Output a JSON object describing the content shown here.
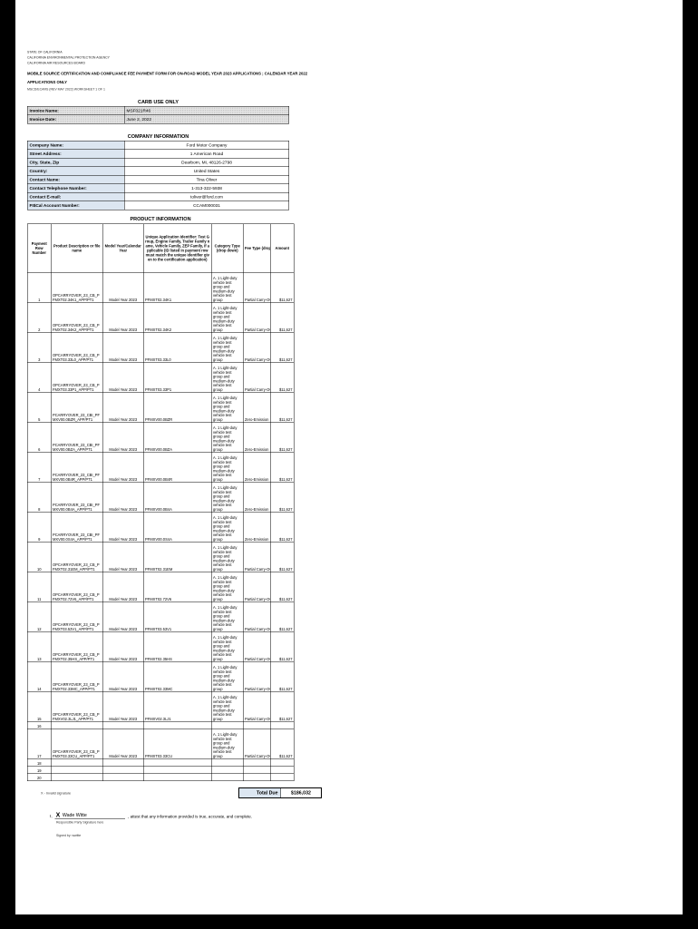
{
  "colors": {
    "page_bg": "#000000",
    "label_fill": "#dce6f1",
    "carb_fill": "#e3e3e3"
  },
  "header": {
    "gov_line1": "STATE OF CALIFORNIA",
    "gov_line2": "CALIFORNIA ENVIRONMENTAL PROTECTION AGENCY",
    "gov_line3": "CALIFORNIA AIR RESOURCES BOARD",
    "title_line1": "MOBILE SOURCE CERTIFICATION AND COMPLIANCE FEE PAYMENT FORM FOR ON-ROAD MODEL YEAR 2023 APPLICATIONS ; CALENDAR YEAR 2022",
    "title_line2": "APPLICATIONS ONLY",
    "form_ref": "MSCD/ECARS (REV MAY 2022) WORKSHEET 1 OF 1"
  },
  "carb_use_only": {
    "section_title": "CARB USE ONLY",
    "fields": [
      {
        "label": "Invoice Name:",
        "value": "MSF021R46"
      },
      {
        "label": "Invoice Date:",
        "value": "June 2, 2022"
      }
    ]
  },
  "company_information": {
    "section_title": "COMPANY INFORMATION",
    "fields": [
      {
        "label": "Company Name:",
        "value": "Ford Motor Company"
      },
      {
        "label": "Street Address:",
        "value": "1 American Road"
      },
      {
        "label": "City, State, Zip",
        "value": "Dearborn, MI, 48126-2798"
      },
      {
        "label": "Country:",
        "value": "United States"
      },
      {
        "label": "Contact Name:",
        "value": "Tina Oliver"
      },
      {
        "label": "Contact Telephone Number:",
        "value": "1-313-322-5938"
      },
      {
        "label": "Contact E-mail:",
        "value": "toliver@ford.com"
      },
      {
        "label": "FI$Cal Account Number:",
        "value": "CCAM000031"
      }
    ]
  },
  "product_information": {
    "section_title": "PRODUCT INFORMATION",
    "columns": [
      "Payment Row Number",
      "Product Description or file name",
      "Model Year/Calendar Year",
      "Unique Application Identifier: Test Group, Engine Family, Trailer Family name, Vehicle Family, ZEP Family, if applicable (ID listed in payment row must match the unique identifier given to the certification application)",
      "Category Type (drop down)",
      "Fee Type (drop down)",
      "Amount"
    ],
    "rows": [
      {
        "num": "1",
        "description": "OPCARRYOVER_23_CB_PFMXT02.34K1_APP/PT1",
        "model_year": "Model Year 2023",
        "identifier": "PFMXT02.34K1",
        "category": "A. 1 Light-duty vehicle test group and medium-duty vehicle test group",
        "fee_type": "Partial Carry-Over",
        "amount": "$11,627"
      },
      {
        "num": "2",
        "description": "OPCARRYOVER_23_CB_PFMXT02.34K2_APP/PT1",
        "model_year": "Model Year 2023",
        "identifier": "PFMXT02.34K2",
        "category": "A. 1 Light-duty vehicle test group and medium-duty vehicle test group",
        "fee_type": "Partial Carry-Over",
        "amount": "$11,627"
      },
      {
        "num": "3",
        "description": "OPCARRYOVER_23_CB_PFMXT03.33L0_APP/PT1",
        "model_year": "Model Year 2023",
        "identifier": "PFMXT03.33L0",
        "category": "A. 1 Light-duty vehicle test group and medium-duty vehicle test group",
        "fee_type": "Partial Carry-Over",
        "amount": "$11,627"
      },
      {
        "num": "4",
        "description": "OPCARRYOVER_23_CB_PFMXT03.33P1_APP/PT1",
        "model_year": "Model Year 2023",
        "identifier": "PFMXT03.33P1",
        "category": "A. 1 Light-duty vehicle test group and medium-duty vehicle test group",
        "fee_type": "Partial Carry-Over",
        "amount": "$11,627"
      },
      {
        "num": "5",
        "description": "PCARRYOVER_23_CBI_PFMXV00.0BZR_APP/PT1",
        "model_year": "Model Year 2023",
        "identifier": "PFMXV00.0BZR",
        "category": "A. 1 Light-duty vehicle test group and medium-duty vehicle test group",
        "fee_type": "Zero-Emission",
        "amount": "$11,627"
      },
      {
        "num": "6",
        "description": "PCARRYOVER_23_CBI_PFMXV00.0BZA_APP/PT1",
        "model_year": "Model Year 2023",
        "identifier": "PFMXV00.0BZA",
        "category": "A. 1 Light-duty vehicle test group and medium-duty vehicle test group",
        "fee_type": "Zero-Emission",
        "amount": "$11,627"
      },
      {
        "num": "7",
        "description": "PCARRYOVER_23_CBI_PFMXV00.0B4R_APP/PT1",
        "model_year": "Model Year 2023",
        "identifier": "PFMXV00.0B4R",
        "category": "A. 1 Light-duty vehicle test group and medium-duty vehicle test group",
        "fee_type": "Zero-Emission",
        "amount": "$11,627"
      },
      {
        "num": "8",
        "description": "PCARRYOVER_23_CBI_PFMXV00.0B4A_APP/PT1",
        "model_year": "Model Year 2023",
        "identifier": "PFMXV00.0B4A",
        "category": "A. 1 Light-duty vehicle test group and medium-duty vehicle test group",
        "fee_type": "Zero-Emission",
        "amount": "$11,627"
      },
      {
        "num": "9",
        "description": "PCARRYOVER_23_CBI_PFMXV00.0S4A_APP/PT1",
        "model_year": "Model Year 2023",
        "identifier": "PFMXV00.0S4A",
        "category": "A. 1 Light-duty vehicle test group and medium-duty vehicle test group",
        "fee_type": "Zero-Emission",
        "amount": "$11,627"
      },
      {
        "num": "10",
        "description": "OPCARRYOVER_23_CB_PFMXT02.31EM_APP/PT1",
        "model_year": "Model Year 2023",
        "identifier": "PFMXT02.31EM",
        "category": "A. 1 Light-duty vehicle test group and medium-duty vehicle test group",
        "fee_type": "Partial Carry-Over",
        "amount": "$11,627"
      },
      {
        "num": "11",
        "description": "OPCARRYOVER_23_CB_PFMXT02.72V6_APP/PT1",
        "model_year": "Model Year 2023",
        "identifier": "PFMXT02.72V6",
        "category": "A. 1 Light-duty vehicle test group and medium-duty vehicle test group",
        "fee_type": "Partial Carry-Over",
        "amount": "$11,627"
      },
      {
        "num": "12",
        "description": "OPCARRYOVER_23_CB_PFMXT03.53V1_APP/PT1",
        "model_year": "Model Year 2023",
        "identifier": "PFMXT03.53V1",
        "category": "A. 1 Light-duty vehicle test group and medium-duty vehicle test group",
        "fee_type": "Partial Carry-Over",
        "amount": "$11,627"
      },
      {
        "num": "13",
        "description": "OPCARRYOVER_23_CB_PFMXT02.35HS_APP/PT1",
        "model_year": "Model Year 2023",
        "identifier": "PFMXT02.35HS",
        "category": "A. 1 Light-duty vehicle test group and medium-duty vehicle test group",
        "fee_type": "Partial Carry-Over",
        "amount": "$11,627"
      },
      {
        "num": "14",
        "description": "OPCARRYOVER_23_CB_PFMXT02.33MC_APP/PT1",
        "model_year": "Model Year 2023",
        "identifier": "PFMXT02.33MC",
        "category": "A. 1 Light-duty vehicle test group and medium-duty vehicle test group",
        "fee_type": "Partial Carry-Over",
        "amount": "$11,627"
      },
      {
        "num": "15",
        "description": "OPCARRYOVER_23_CB_PFMXV02.3LJ1_APP/PT1",
        "model_year": "Model Year 2023",
        "identifier": "PFMXV02.3LJ1",
        "category": "A. 1 Light-duty vehicle test group and medium-duty vehicle test group",
        "fee_type": "Partial Carry-Over",
        "amount": "$11,627"
      },
      {
        "num": "16",
        "empty": true
      },
      {
        "num": "17",
        "description": "OPCARRYOVER_23_CB_PFMXT03.33CU_APP/PT1",
        "model_year": "Model Year 2023",
        "identifier": "PFMXT03.33CU",
        "category": "A. 1 Light-duty vehicle test group and medium-duty vehicle test group",
        "fee_type": "Partial Carry-Over",
        "amount": "$11,627"
      },
      {
        "num": "18",
        "empty": true
      },
      {
        "num": "19",
        "empty": true
      },
      {
        "num": "20",
        "empty": true
      }
    ],
    "total_label": "Total Due",
    "total_value": "$186,032"
  },
  "footnote": {
    "text": "X - Invalid signature"
  },
  "signature": {
    "prefix": "I,",
    "x_mark": "X",
    "name": "Wade Witte",
    "attest_text": ", attest that any information provided is true, accurate, and complete.",
    "line_caption": "Responsible Party Signature here",
    "signed_by": "Signed by: wwitte"
  }
}
